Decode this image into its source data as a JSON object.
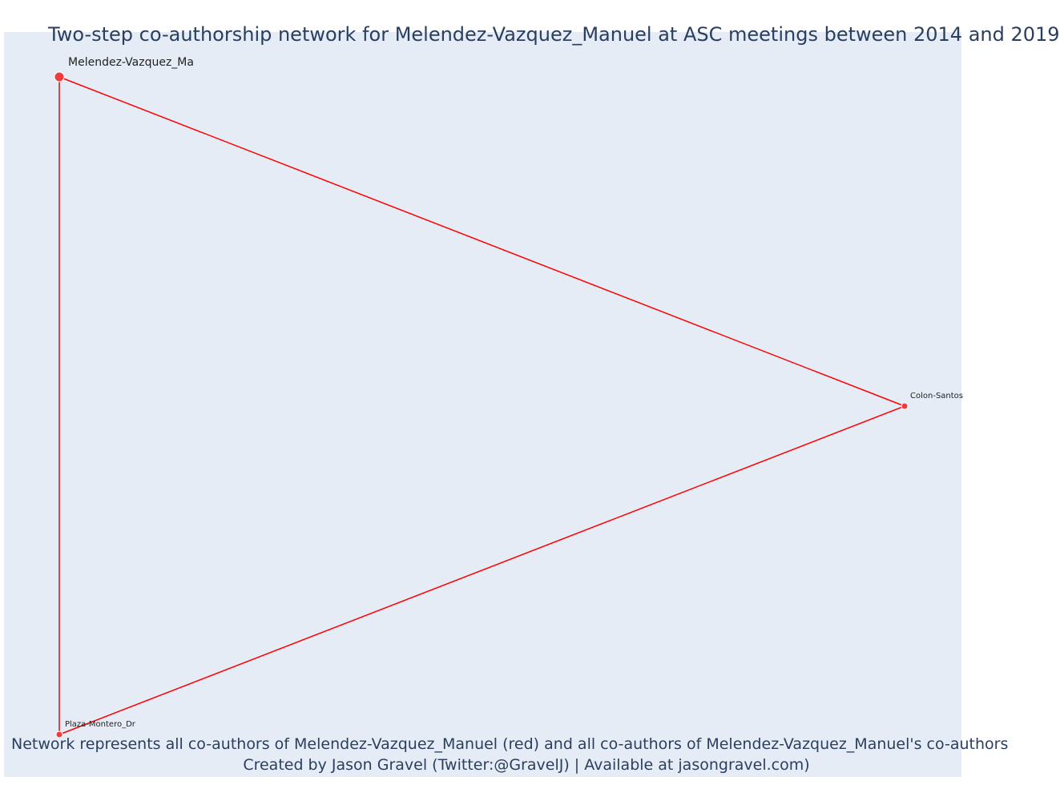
{
  "title": "Two-step co-authorship network for Melendez-Vazquez_Manuel at ASC meetings between 2014 and 2019",
  "caption": {
    "line1": "Network represents all co-authors of Melendez-Vazquez_Manuel (red) and all co-authors of Melendez-Vazquez_Manuel's co-authors",
    "line2": "Created by Jason Gravel (Twitter:@GravelJ) | Available at jasongravel.com)"
  },
  "colors": {
    "edge": "#ff0000",
    "node": "#ef3b3b",
    "node_outline": "#ffffff",
    "background": "#e5ecf6",
    "text": "#2a3f5f"
  },
  "network": {
    "nodes": [
      {
        "id": "melendez",
        "label": "Melendez-Vazquez_Ma",
        "focal": true
      },
      {
        "id": "colon",
        "label": "Colon-Santos",
        "focal": false
      },
      {
        "id": "plaza",
        "label": "Plaza-Montero_Dr",
        "focal": false
      }
    ],
    "edges": [
      {
        "source": "melendez",
        "target": "colon"
      },
      {
        "source": "melendez",
        "target": "plaza"
      },
      {
        "source": "colon",
        "target": "plaza"
      }
    ]
  }
}
